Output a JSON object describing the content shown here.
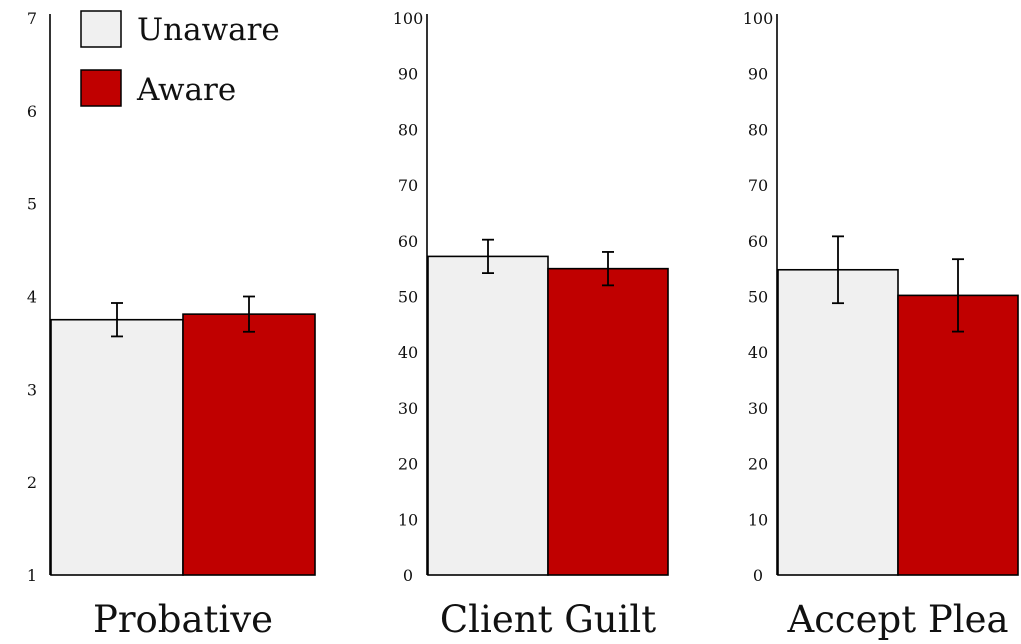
{
  "chart_data": [
    {
      "type": "bar",
      "categories": [
        "Probative"
      ],
      "series": [
        {
          "name": "Unaware",
          "values": [
            3.75
          ],
          "error": [
            0.18
          ]
        },
        {
          "name": "Aware",
          "values": [
            3.81
          ],
          "error": [
            0.19
          ]
        }
      ],
      "ylim": [
        1,
        7
      ],
      "yticks": [
        1,
        2,
        3,
        4,
        5,
        6,
        7
      ],
      "xlabel": "Probative"
    },
    {
      "type": "bar",
      "categories": [
        "Client Guilt"
      ],
      "series": [
        {
          "name": "Unaware",
          "values": [
            57.2
          ],
          "error": [
            3.0
          ]
        },
        {
          "name": "Aware",
          "values": [
            55.0
          ],
          "error": [
            3.0
          ]
        }
      ],
      "ylim": [
        0,
        100
      ],
      "yticks": [
        0,
        10,
        20,
        30,
        40,
        50,
        60,
        70,
        80,
        90,
        100
      ],
      "xlabel": "Client Guilt"
    },
    {
      "type": "bar",
      "categories": [
        "Accept Plea"
      ],
      "series": [
        {
          "name": "Unaware",
          "values": [
            54.8
          ],
          "error": [
            6.0
          ]
        },
        {
          "name": "Aware",
          "values": [
            50.2
          ],
          "error": [
            6.5
          ]
        }
      ],
      "ylim": [
        0,
        100
      ],
      "yticks": [
        0,
        10,
        20,
        30,
        40,
        50,
        60,
        70,
        80,
        90,
        100
      ],
      "xlabel": "Accept Plea"
    }
  ],
  "legend": {
    "position": "top-left",
    "items": [
      {
        "label": "Unaware",
        "color": "#f0f0f0"
      },
      {
        "label": "Aware",
        "color": "#c00000"
      }
    ]
  },
  "colors": {
    "unaware": "#f0f0f0",
    "aware": "#c00000",
    "outline": "#000000"
  },
  "grid": false
}
